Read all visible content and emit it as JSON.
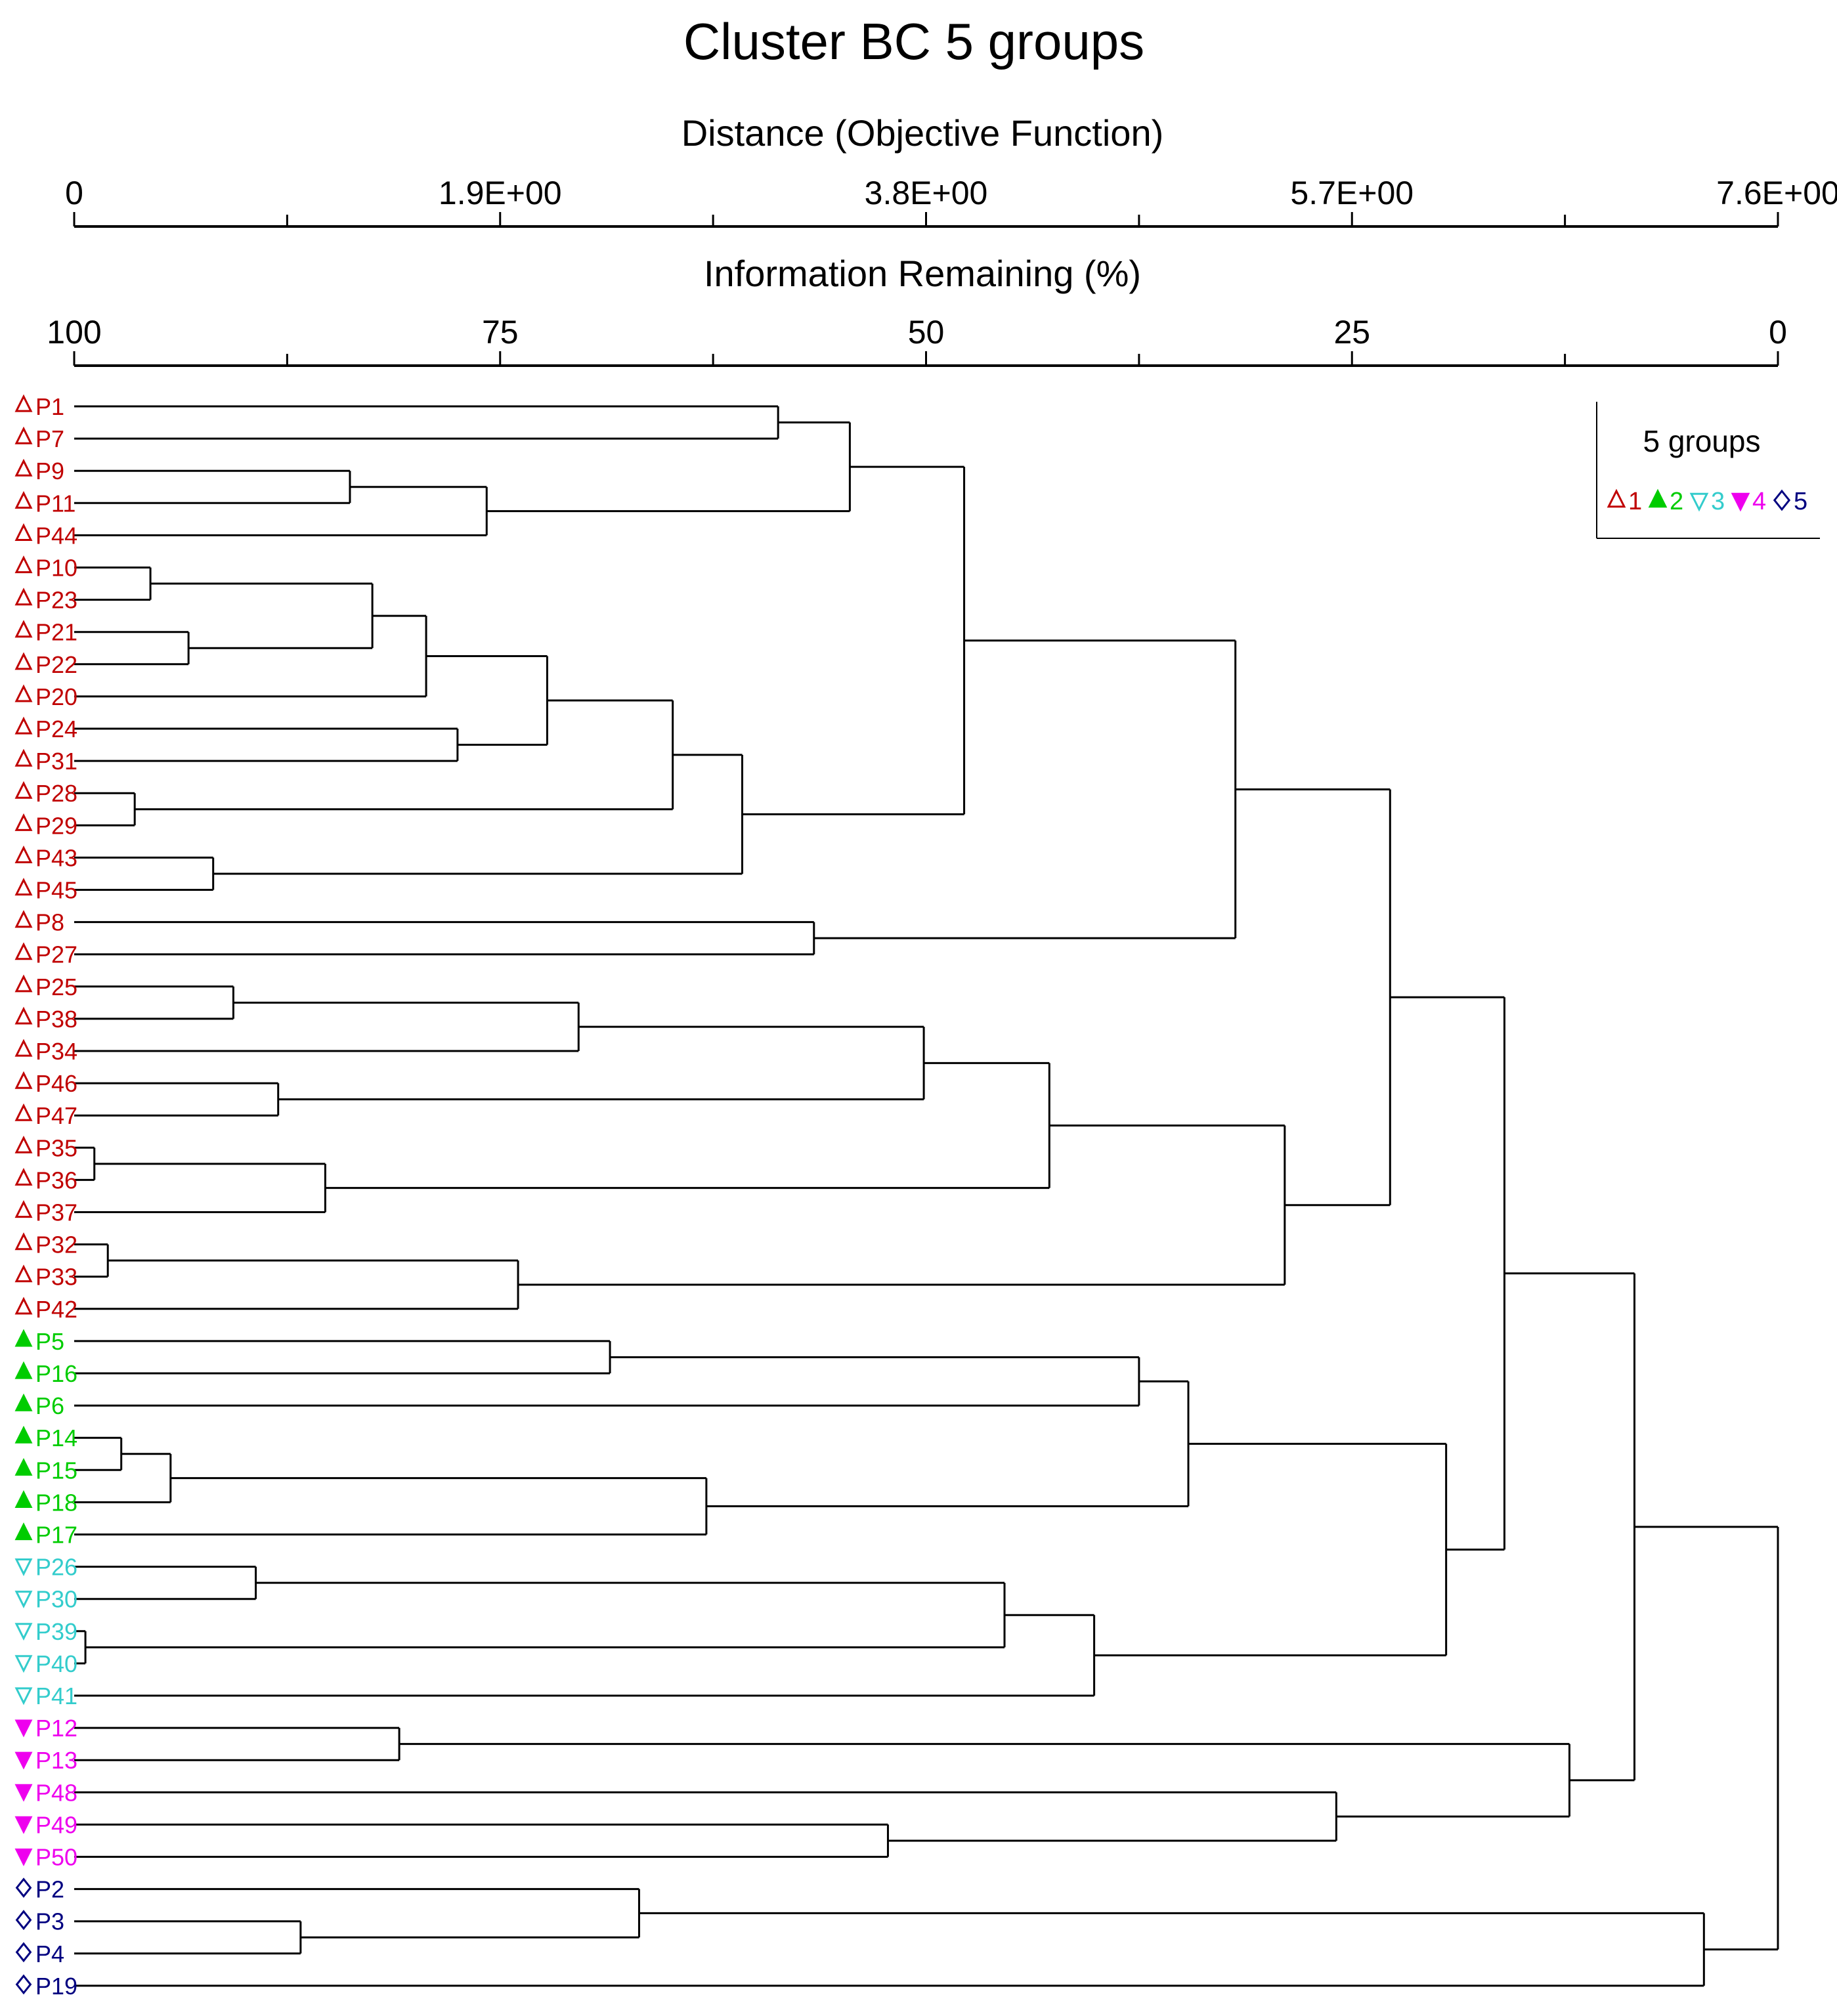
{
  "chart_data": {
    "type": "dendrogram",
    "title": "Cluster BC 5 groups",
    "top_axis": {
      "label": "Distance (Objective Function)",
      "ticks": [
        {
          "value": 0,
          "label": "0"
        },
        {
          "value": 1.9,
          "label": "1.9E+00"
        },
        {
          "value": 3.8,
          "label": "3.8E+00"
        },
        {
          "value": 5.7,
          "label": "5.7E+00"
        },
        {
          "value": 7.6,
          "label": "7.6E+00"
        }
      ],
      "minor_ticks": [
        0.95,
        2.85,
        4.75,
        6.65
      ],
      "range": [
        0,
        7.6
      ]
    },
    "second_axis": {
      "label": "Information Remaining (%)",
      "ticks": [
        {
          "value": 100,
          "label": "100"
        },
        {
          "value": 75,
          "label": "75"
        },
        {
          "value": 50,
          "label": "50"
        },
        {
          "value": 25,
          "label": "25"
        },
        {
          "value": 0,
          "label": "0"
        }
      ],
      "minor_ticks": [
        87.5,
        62.5,
        37.5,
        12.5
      ],
      "range": [
        100,
        0
      ]
    },
    "legend": {
      "title": "5 groups",
      "entries": [
        {
          "group": 1,
          "label": "1",
          "symbol": "open-up-triangle",
          "color": "#c00000"
        },
        {
          "group": 2,
          "label": "2",
          "symbol": "filled-up-triangle",
          "color": "#00cc00"
        },
        {
          "group": 3,
          "label": "3",
          "symbol": "open-down-triangle",
          "color": "#33cccc"
        },
        {
          "group": 4,
          "label": "4",
          "symbol": "filled-down-triangle",
          "color": "#ee00ee"
        },
        {
          "group": 5,
          "label": "5",
          "symbol": "open-diamond",
          "color": "#000080"
        }
      ]
    },
    "leaves": [
      {
        "label": "P1",
        "group": 1
      },
      {
        "label": "P7",
        "group": 1
      },
      {
        "label": "P9",
        "group": 1
      },
      {
        "label": "P11",
        "group": 1
      },
      {
        "label": "P44",
        "group": 1
      },
      {
        "label": "P10",
        "group": 1
      },
      {
        "label": "P23",
        "group": 1
      },
      {
        "label": "P21",
        "group": 1
      },
      {
        "label": "P22",
        "group": 1
      },
      {
        "label": "P20",
        "group": 1
      },
      {
        "label": "P24",
        "group": 1
      },
      {
        "label": "P31",
        "group": 1
      },
      {
        "label": "P28",
        "group": 1
      },
      {
        "label": "P29",
        "group": 1
      },
      {
        "label": "P43",
        "group": 1
      },
      {
        "label": "P45",
        "group": 1
      },
      {
        "label": "P8",
        "group": 1
      },
      {
        "label": "P27",
        "group": 1
      },
      {
        "label": "P25",
        "group": 1
      },
      {
        "label": "P38",
        "group": 1
      },
      {
        "label": "P34",
        "group": 1
      },
      {
        "label": "P46",
        "group": 1
      },
      {
        "label": "P47",
        "group": 1
      },
      {
        "label": "P35",
        "group": 1
      },
      {
        "label": "P36",
        "group": 1
      },
      {
        "label": "P37",
        "group": 1
      },
      {
        "label": "P32",
        "group": 1
      },
      {
        "label": "P33",
        "group": 1
      },
      {
        "label": "P42",
        "group": 1
      },
      {
        "label": "P5",
        "group": 2
      },
      {
        "label": "P16",
        "group": 2
      },
      {
        "label": "P6",
        "group": 2
      },
      {
        "label": "P14",
        "group": 2
      },
      {
        "label": "P15",
        "group": 2
      },
      {
        "label": "P18",
        "group": 2
      },
      {
        "label": "P17",
        "group": 2
      },
      {
        "label": "P26",
        "group": 3
      },
      {
        "label": "P30",
        "group": 3
      },
      {
        "label": "P39",
        "group": 3
      },
      {
        "label": "P40",
        "group": 3
      },
      {
        "label": "P41",
        "group": 3
      },
      {
        "label": "P12",
        "group": 4
      },
      {
        "label": "P13",
        "group": 4
      },
      {
        "label": "P48",
        "group": 4
      },
      {
        "label": "P49",
        "group": 4
      },
      {
        "label": "P50",
        "group": 4
      },
      {
        "label": "P2",
        "group": 5
      },
      {
        "label": "P3",
        "group": 5
      },
      {
        "label": "P4",
        "group": 5
      },
      {
        "label": "P19",
        "group": 5
      }
    ],
    "merges": [
      {
        "id": "m1",
        "left": "P1",
        "right": "P7",
        "height": 3.14
      },
      {
        "id": "m2",
        "left": "P9",
        "right": "P11",
        "height": 1.23
      },
      {
        "id": "m3",
        "left": "m2",
        "right": "P44",
        "height": 1.84
      },
      {
        "id": "m4",
        "left": "m1",
        "right": "m3",
        "height": 3.46
      },
      {
        "id": "m5",
        "left": "P10",
        "right": "P23",
        "height": 0.34
      },
      {
        "id": "m6",
        "left": "P21",
        "right": "P22",
        "height": 0.51
      },
      {
        "id": "m7",
        "left": "m5",
        "right": "m6",
        "height": 1.33
      },
      {
        "id": "m8",
        "left": "m7",
        "right": "P20",
        "height": 1.57
      },
      {
        "id": "m9",
        "left": "P24",
        "right": "P31",
        "height": 1.71
      },
      {
        "id": "m10",
        "left": "m8",
        "right": "m9",
        "height": 2.11
      },
      {
        "id": "m11",
        "left": "P28",
        "right": "P29",
        "height": 0.27
      },
      {
        "id": "m12",
        "left": "m10",
        "right": "m11",
        "height": 2.67
      },
      {
        "id": "m13",
        "left": "P43",
        "right": "P45",
        "height": 0.62
      },
      {
        "id": "m14",
        "left": "m12",
        "right": "m13",
        "height": 2.98
      },
      {
        "id": "m15",
        "left": "m4",
        "right": "m14",
        "height": 3.97
      },
      {
        "id": "m16",
        "left": "P8",
        "right": "P27",
        "height": 3.3
      },
      {
        "id": "m17",
        "left": "m15",
        "right": "m16",
        "height": 5.18
      },
      {
        "id": "m18",
        "left": "P25",
        "right": "P38",
        "height": 0.71
      },
      {
        "id": "m19",
        "left": "m18",
        "right": "P34",
        "height": 2.25
      },
      {
        "id": "m20",
        "left": "P46",
        "right": "P47",
        "height": 0.91
      },
      {
        "id": "m21",
        "left": "m19",
        "right": "m20",
        "height": 3.79
      },
      {
        "id": "m22",
        "left": "P35",
        "right": "P36",
        "height": 0.09
      },
      {
        "id": "m23",
        "left": "m22",
        "right": "P37",
        "height": 1.12
      },
      {
        "id": "m24",
        "left": "m21",
        "right": "m23",
        "height": 4.35
      },
      {
        "id": "m25",
        "left": "P32",
        "right": "P33",
        "height": 0.15
      },
      {
        "id": "m26",
        "left": "m25",
        "right": "P42",
        "height": 1.98
      },
      {
        "id": "m27",
        "left": "m24",
        "right": "m26",
        "height": 5.4
      },
      {
        "id": "m28",
        "left": "P5",
        "right": "P16",
        "height": 2.39
      },
      {
        "id": "m29",
        "left": "m28",
        "right": "P6",
        "height": 4.75
      },
      {
        "id": "m30",
        "left": "P14",
        "right": "P15",
        "height": 0.21
      },
      {
        "id": "m31",
        "left": "m30",
        "right": "P18",
        "height": 0.43
      },
      {
        "id": "m32",
        "left": "m31",
        "right": "P17",
        "height": 2.82
      },
      {
        "id": "m33",
        "left": "m29",
        "right": "m32",
        "height": 4.97
      },
      {
        "id": "m34",
        "left": "P26",
        "right": "P30",
        "height": 0.81
      },
      {
        "id": "m35",
        "left": "P39",
        "right": "P40",
        "height": 0.05
      },
      {
        "id": "m36",
        "left": "m34",
        "right": "m35",
        "height": 4.15
      },
      {
        "id": "m37",
        "left": "m36",
        "right": "P41",
        "height": 4.55
      },
      {
        "id": "m38",
        "left": "m33",
        "right": "m37",
        "height": 6.12
      },
      {
        "id": "m39",
        "left": "m17",
        "right": "m27",
        "height": 5.87
      },
      {
        "id": "m40",
        "left": "m39",
        "right": "m38",
        "height": 6.38
      },
      {
        "id": "m41",
        "left": "P12",
        "right": "P13",
        "height": 1.45
      },
      {
        "id": "m42",
        "left": "P49",
        "right": "P50",
        "height": 3.63
      },
      {
        "id": "m43",
        "left": "P48",
        "right": "m42",
        "height": 5.63
      },
      {
        "id": "m44",
        "left": "m41",
        "right": "m43",
        "height": 6.67
      },
      {
        "id": "m45",
        "left": "m40",
        "right": "m44",
        "height": 6.96
      },
      {
        "id": "m46",
        "left": "P3",
        "right": "P4",
        "height": 1.01
      },
      {
        "id": "m47",
        "left": "P2",
        "right": "m46",
        "height": 2.52
      },
      {
        "id": "m48",
        "left": "m47",
        "right": "P19",
        "height": 7.27
      },
      {
        "id": "m49",
        "left": "m45",
        "right": "m48",
        "height": 7.6
      }
    ]
  }
}
